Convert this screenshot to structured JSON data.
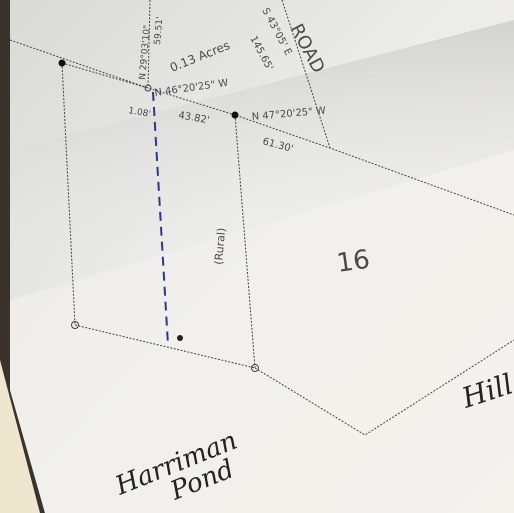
{
  "labels": {
    "road": "ROAD",
    "bearing_top_right": "S 43°05' E",
    "distance_top_right": "145.65'",
    "area": "0.13 Acres",
    "bearing_left": "N 29°03'10\"",
    "distance_left": "59.51'",
    "bearing_mid": "N 46°20'25\" W",
    "distance_mid": "43.82'",
    "offset": "1.08'",
    "bearing_right": "N 47°20'25\" W",
    "distance_right": "61.30'",
    "parcel_note": "(Rural)",
    "lot_number": "16",
    "hill": "Hill",
    "pond_line1": "Harriman",
    "pond_line2": "Pond"
  }
}
